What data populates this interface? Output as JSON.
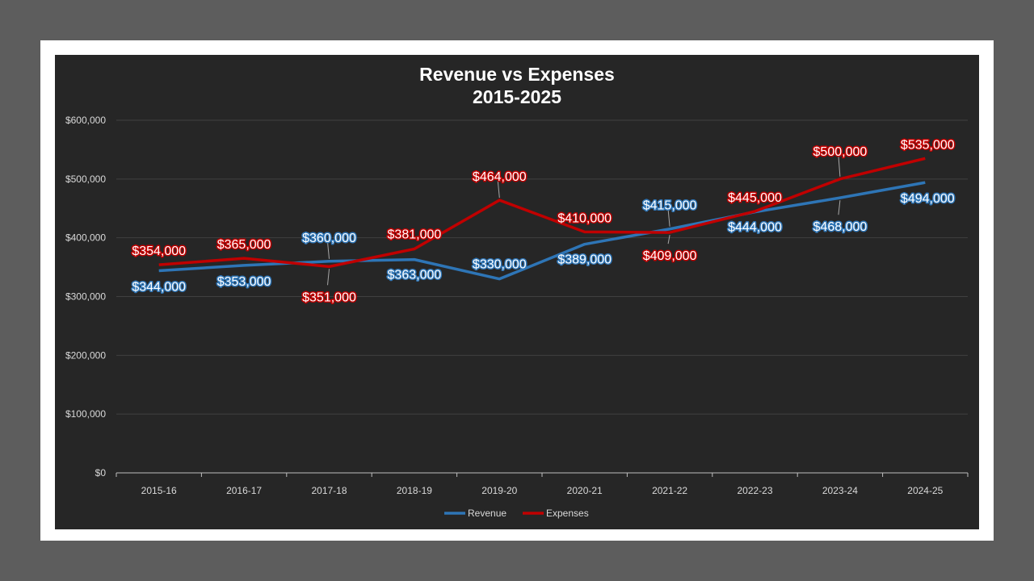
{
  "chart_data": {
    "type": "line",
    "title": [
      "Revenue vs Expenses",
      "2015-2025"
    ],
    "categories": [
      "2015-16",
      "2016-17",
      "2017-18",
      "2018-19",
      "2019-20",
      "2020-21",
      "2021-22",
      "2022-23",
      "2023-24",
      "2024-25"
    ],
    "series": [
      {
        "name": "Revenue",
        "color": "#2e75b6",
        "values": [
          344000,
          353000,
          360000,
          363000,
          330000,
          389000,
          415000,
          444000,
          468000,
          494000
        ],
        "labels": [
          "$344,000",
          "$353,000",
          "$360,000",
          "$363,000",
          "$330,000",
          "$389,000",
          "$415,000",
          "$444,000",
          "$468,000",
          "$494,000"
        ]
      },
      {
        "name": "Expenses",
        "color": "#c00000",
        "values": [
          354000,
          365000,
          351000,
          381000,
          464000,
          410000,
          409000,
          445000,
          500000,
          535000
        ],
        "labels": [
          "$354,000",
          "$365,000",
          "$351,000",
          "$381,000",
          "$464,000",
          "$410,000",
          "$409,000",
          "$445,000",
          "$500,000",
          "$535,000"
        ]
      }
    ],
    "ylim": [
      0,
      600000
    ],
    "yticks": [
      0,
      100000,
      200000,
      300000,
      400000,
      500000,
      600000
    ],
    "ytick_labels": [
      "$0",
      "$100,000",
      "$200,000",
      "$300,000",
      "$400,000",
      "$500,000",
      "$600,000"
    ],
    "grid": true,
    "legend": "bottom",
    "xlabel": "",
    "ylabel": ""
  }
}
